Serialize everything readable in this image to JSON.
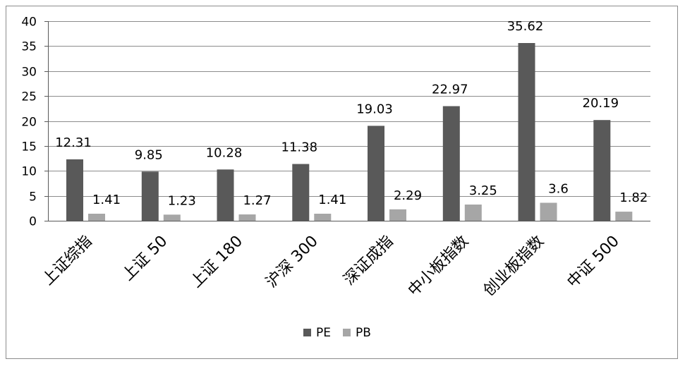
{
  "chart_data": {
    "type": "bar",
    "categories": [
      "上证综指",
      "上证 50",
      "上证 180",
      "沪深 300",
      "深证成指",
      "中小板指数",
      "创业板指数",
      "中证 500"
    ],
    "series": [
      {
        "name": "PE",
        "values": [
          12.31,
          9.85,
          10.28,
          11.38,
          19.03,
          22.97,
          35.62,
          20.19
        ],
        "color": "#595959"
      },
      {
        "name": "PB",
        "values": [
          1.41,
          1.23,
          1.27,
          1.41,
          2.29,
          3.25,
          3.6,
          1.82
        ],
        "color": "#a6a6a6"
      }
    ],
    "data_labels": {
      "PE": [
        "12.31",
        "9.85",
        "10.28",
        "11.38",
        "19.03",
        "22.97",
        "35.62",
        "20.19"
      ],
      "PB": [
        "1.41",
        "1.23",
        "1.27",
        "1.41",
        "2.29",
        "3.25",
        "3.6",
        "1.82"
      ]
    },
    "yticks": [
      "0",
      "5",
      "10",
      "15",
      "20",
      "25",
      "30",
      "35",
      "40"
    ],
    "ylim": [
      0,
      40
    ],
    "grid": true,
    "legend_position": "bottom",
    "title": "",
    "xlabel": "",
    "ylabel": ""
  }
}
